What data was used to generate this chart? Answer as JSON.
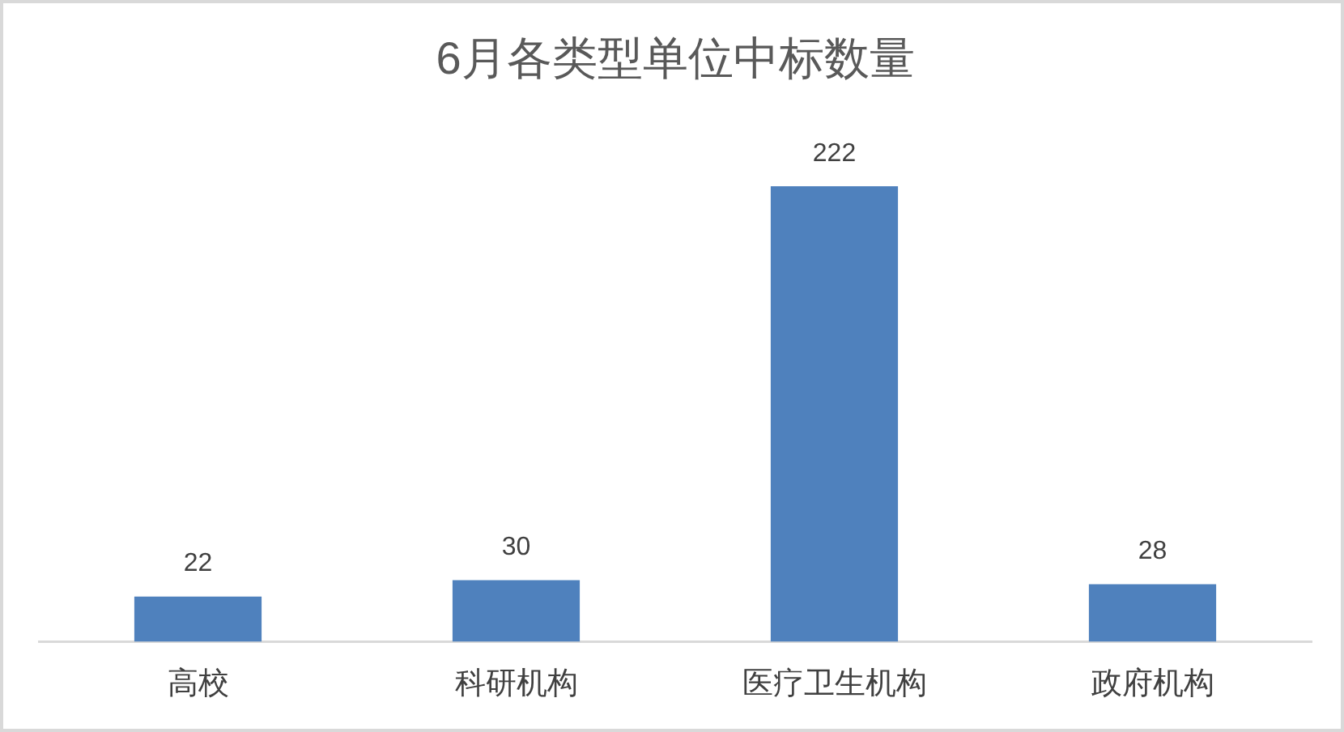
{
  "chart_data": {
    "type": "bar",
    "title": "6月各类型单位中标数量",
    "categories": [
      "高校",
      "科研机构",
      "医疗卫生机构",
      "政府机构"
    ],
    "values": [
      22,
      30,
      222,
      28
    ],
    "color": "#4f81bd",
    "data_labels": true,
    "tick_labels": "x"
  }
}
